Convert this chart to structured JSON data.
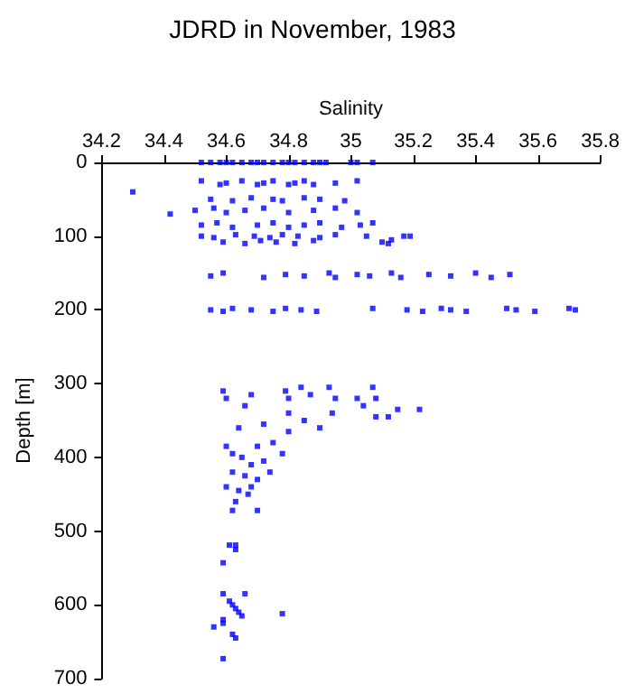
{
  "chart_data": {
    "type": "scatter",
    "title": "JDRD in November, 1983",
    "xlabel": "Salinity",
    "ylabel": "Depth [m]",
    "xlim": [
      34.2,
      35.8
    ],
    "xticks": [
      34.2,
      34.4,
      34.6,
      34.8,
      35,
      35.2,
      35.4,
      35.6,
      35.8
    ],
    "ylim": [
      700,
      0
    ],
    "yticks": [
      0,
      100,
      200,
      300,
      400,
      500,
      600,
      700
    ],
    "marker": "square",
    "series": [
      {
        "color": "#0000ff",
        "x": [
          34.52,
          34.55,
          34.58,
          34.6,
          34.62,
          34.65,
          34.68,
          34.7,
          34.72,
          34.75,
          34.78,
          34.8,
          34.82,
          34.85,
          34.88,
          34.9,
          34.92,
          35.0,
          35.02,
          35.07,
          34.3,
          34.42,
          34.52,
          34.58,
          34.6,
          34.65,
          34.7,
          34.72,
          34.75,
          34.8,
          34.82,
          34.85,
          34.88,
          34.95,
          35.02,
          34.55,
          34.62,
          34.68,
          34.75,
          34.78,
          34.85,
          34.9,
          34.98,
          34.5,
          34.56,
          34.6,
          34.66,
          34.72,
          34.8,
          34.88,
          34.95,
          35.02,
          34.52,
          34.57,
          34.62,
          34.7,
          34.75,
          34.8,
          34.85,
          34.9,
          34.97,
          35.03,
          35.07,
          34.52,
          34.56,
          34.63,
          34.69,
          34.74,
          34.78,
          34.83,
          34.9,
          34.95,
          35.05,
          35.13,
          35.17,
          35.19,
          34.59,
          34.66,
          34.71,
          34.76,
          34.82,
          34.88,
          35.1,
          35.12,
          34.55,
          34.59,
          34.72,
          34.79,
          34.85,
          34.93,
          34.95,
          35.02,
          35.06,
          35.13,
          35.16,
          35.25,
          35.32,
          35.4,
          35.45,
          35.51,
          34.55,
          34.59,
          34.62,
          34.68,
          34.75,
          34.79,
          34.84,
          34.89,
          35.07,
          35.18,
          35.23,
          35.29,
          35.32,
          35.37,
          35.5,
          35.53,
          35.59,
          35.7,
          35.72,
          34.59,
          34.6,
          34.66,
          34.68,
          34.79,
          34.8,
          34.84,
          34.87,
          34.93,
          34.95,
          35.02,
          35.07,
          35.08,
          35.04,
          35.15,
          35.22,
          34.8,
          34.94,
          35.08,
          35.12,
          34.64,
          34.72,
          34.8,
          34.85,
          34.9,
          34.6,
          34.62,
          34.7,
          34.75,
          34.65,
          34.68,
          34.72,
          34.78,
          34.62,
          34.66,
          34.7,
          34.6,
          34.64,
          34.67,
          34.63,
          34.68,
          34.74,
          34.62,
          34.7,
          34.61,
          34.63,
          34.63,
          34.59,
          34.59,
          34.66,
          34.61,
          34.62,
          34.63,
          34.64,
          34.65,
          34.78,
          34.59,
          34.59,
          34.56,
          34.62,
          34.63,
          34.59
        ],
        "values": [
          0,
          0,
          0,
          0,
          0,
          0,
          0,
          0,
          0,
          0,
          0,
          0,
          0,
          0,
          0,
          0,
          0,
          0,
          0,
          0,
          40,
          70,
          25,
          30,
          28,
          25,
          30,
          28,
          25,
          30,
          28,
          25,
          30,
          28,
          25,
          50,
          52,
          48,
          50,
          52,
          48,
          50,
          52,
          65,
          62,
          68,
          65,
          62,
          68,
          65,
          62,
          68,
          85,
          82,
          88,
          85,
          82,
          88,
          85,
          82,
          88,
          85,
          82,
          100,
          102,
          98,
          100,
          102,
          98,
          100,
          102,
          98,
          100,
          105,
          100,
          100,
          108,
          110,
          106,
          108,
          110,
          106,
          108,
          110,
          154,
          150,
          156,
          152,
          154,
          150,
          156,
          152,
          154,
          150,
          156,
          152,
          154,
          150,
          156,
          152,
          200,
          202,
          198,
          200,
          202,
          198,
          200,
          202,
          198,
          200,
          202,
          198,
          200,
          202,
          198,
          200,
          202,
          198,
          200,
          310,
          320,
          330,
          315,
          310,
          320,
          305,
          315,
          305,
          320,
          320,
          305,
          320,
          330,
          335,
          335,
          340,
          340,
          345,
          345,
          360,
          355,
          365,
          350,
          360,
          385,
          395,
          385,
          380,
          400,
          410,
          405,
          395,
          420,
          425,
          430,
          440,
          445,
          450,
          460,
          440,
          420,
          472,
          472,
          519,
          519,
          525,
          543,
          585,
          585,
          595,
          600,
          605,
          610,
          615,
          612,
          620,
          625,
          630,
          640,
          645,
          673
        ]
      }
    ]
  }
}
